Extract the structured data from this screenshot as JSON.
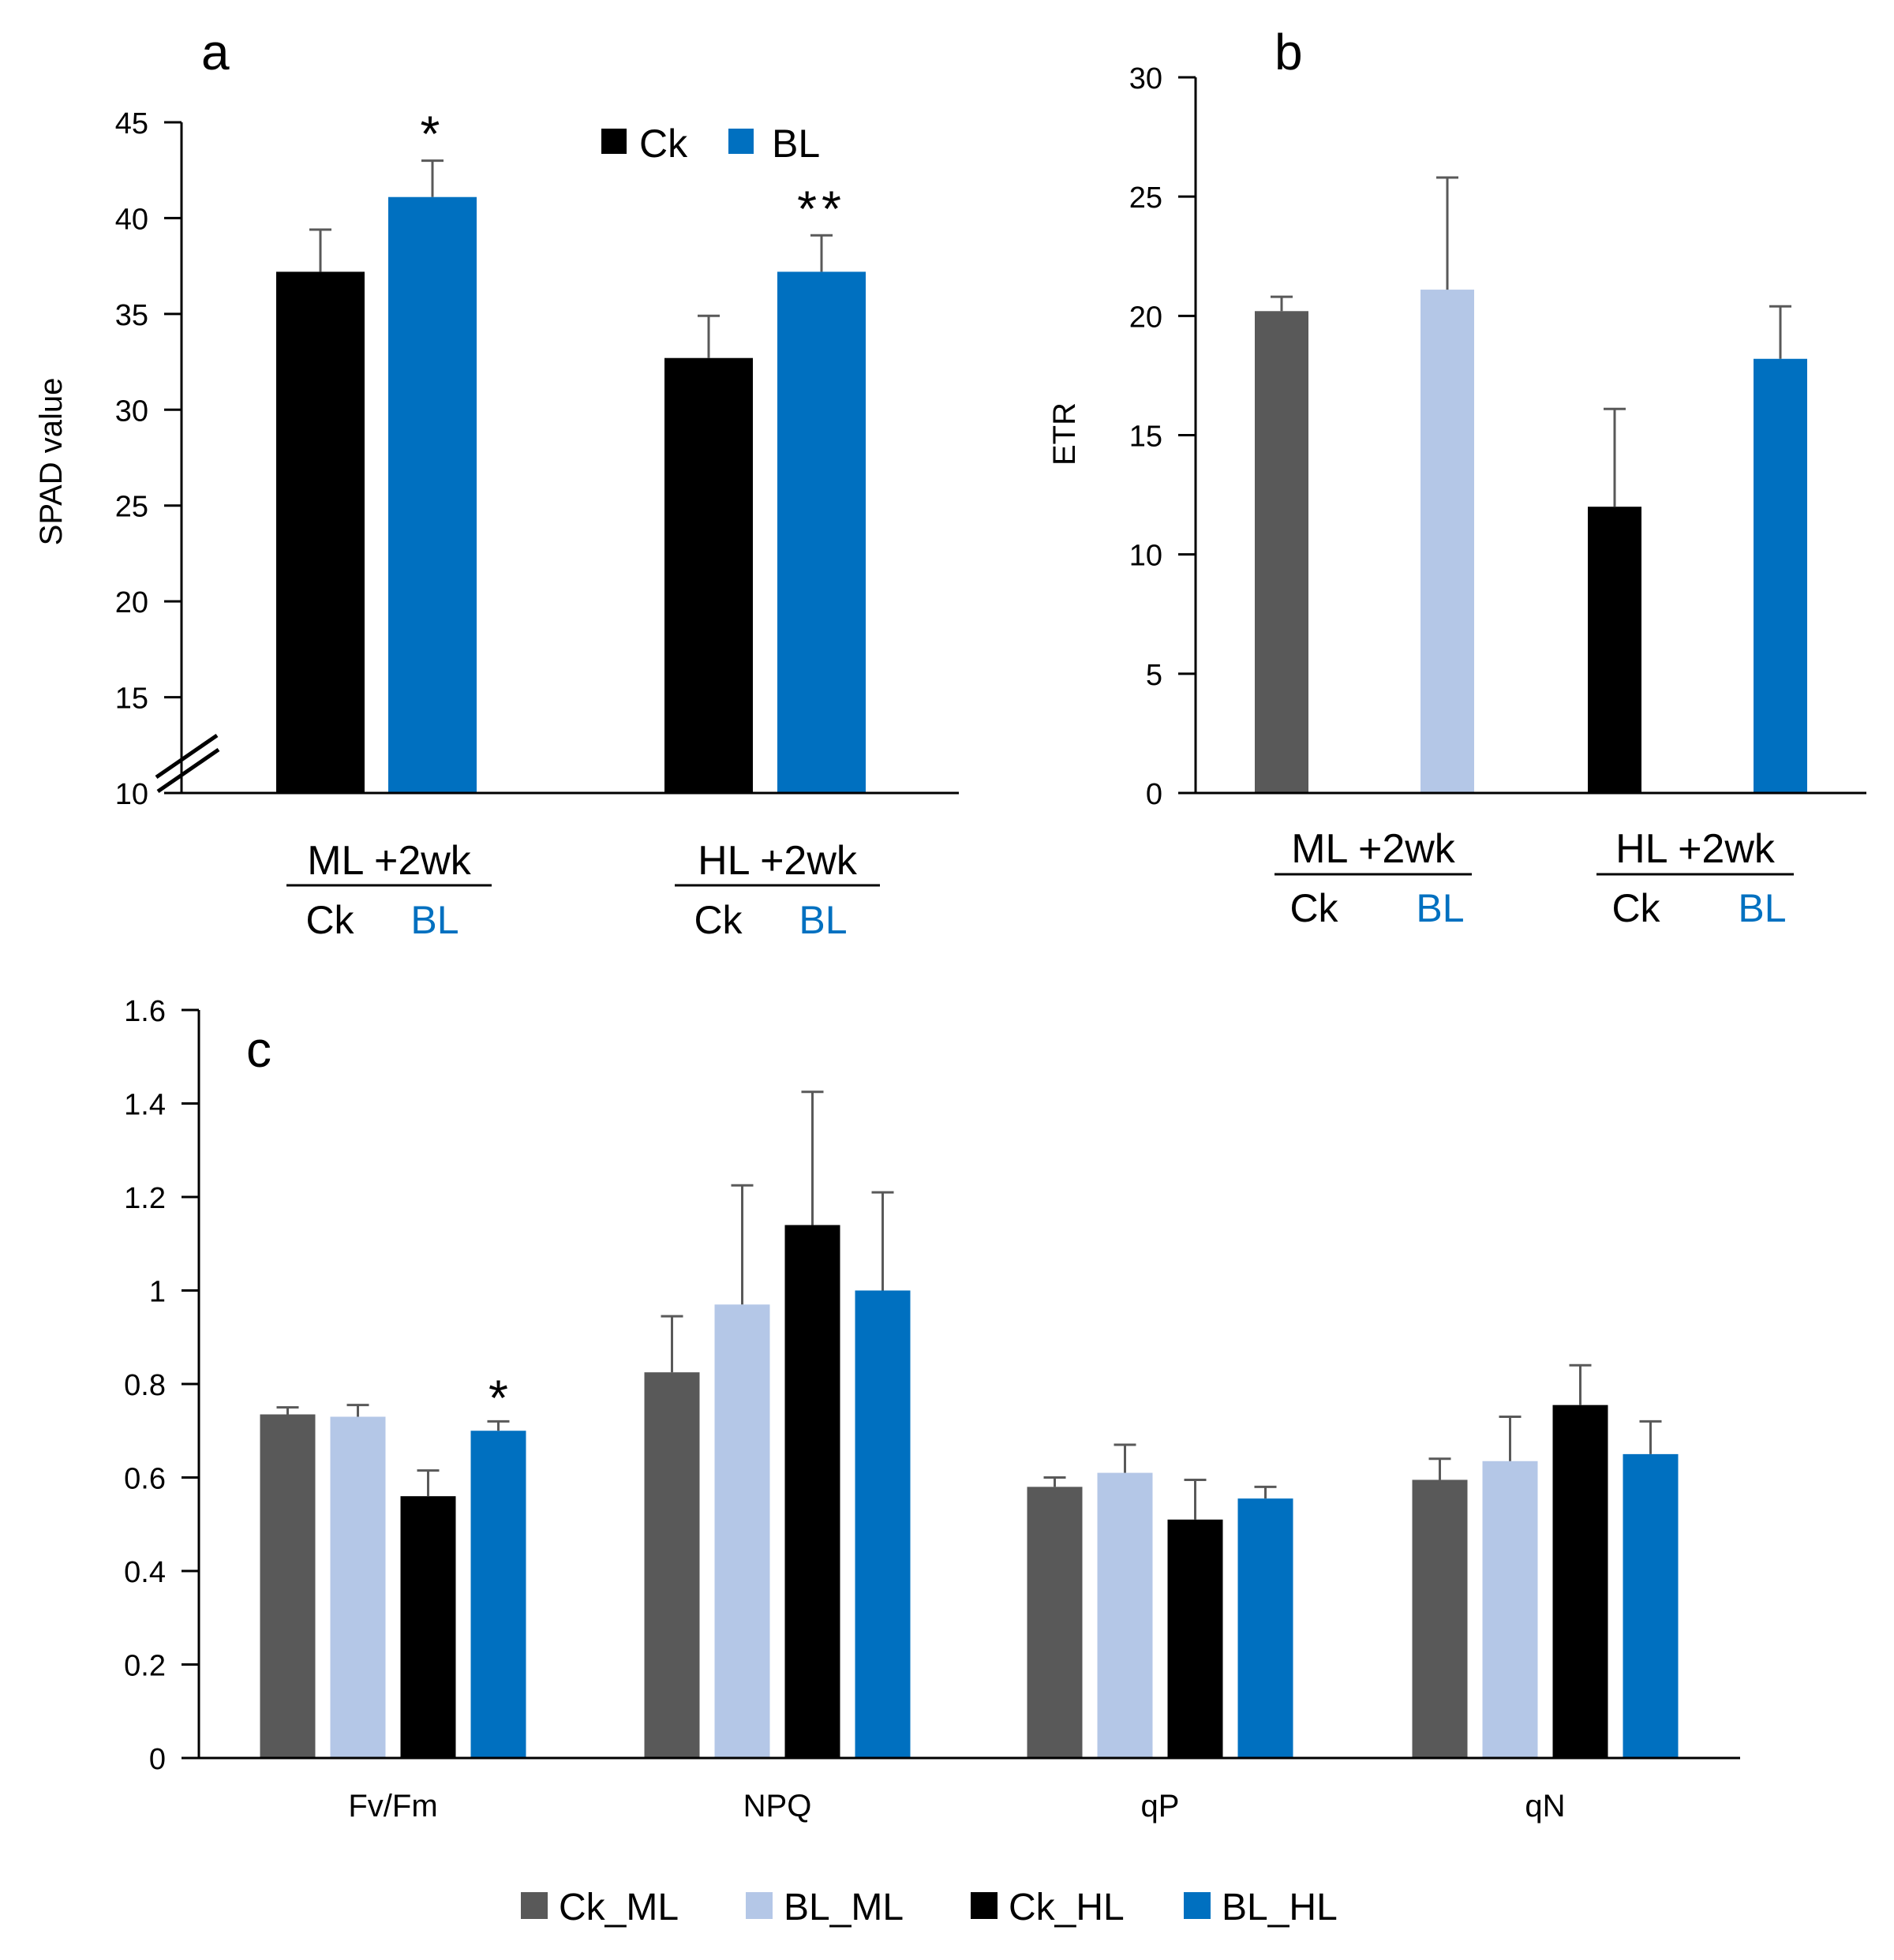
{
  "colors": {
    "ck": "#000000",
    "bl": "#0070c0",
    "ck_ml": "#595959",
    "bl_ml": "#b4c7e7",
    "ck_hl": "#000000",
    "bl_hl": "#0070c0",
    "axis": "#000000",
    "error_bar": "#595959"
  },
  "chart_data": [
    {
      "panel": "a",
      "type": "bar",
      "ylabel": "SPAD value",
      "ylim": [
        10,
        45
      ],
      "axis_break": true,
      "yticks": [
        "10",
        "15",
        "20",
        "25",
        "30",
        "35",
        "40",
        "45"
      ],
      "legend": [
        "Ck",
        "BL"
      ],
      "groups": [
        {
          "label": "ML +2wk",
          "sublabels": [
            "Ck",
            "BL"
          ],
          "bars": [
            {
              "series": "Ck",
              "value": 37.2,
              "error": 2.2,
              "sig": ""
            },
            {
              "series": "BL",
              "value": 41.1,
              "error": 1.9,
              "sig": "*"
            }
          ]
        },
        {
          "label": "HL +2wk",
          "sublabels": [
            "Ck",
            "BL"
          ],
          "bars": [
            {
              "series": "Ck",
              "value": 32.7,
              "error": 2.2,
              "sig": ""
            },
            {
              "series": "BL",
              "value": 37.2,
              "error": 1.9,
              "sig": "**"
            }
          ]
        }
      ]
    },
    {
      "panel": "b",
      "type": "bar",
      "ylabel": "ETR",
      "ylim": [
        0,
        30
      ],
      "yticks": [
        "0",
        "5",
        "10",
        "15",
        "20",
        "25",
        "30"
      ],
      "groups": [
        {
          "label": "ML +2wk",
          "sublabels": [
            "Ck",
            "BL"
          ],
          "bars": [
            {
              "series": "Ck_ML",
              "value": 20.2,
              "error": 0.6
            },
            {
              "series": "BL_ML",
              "value": 21.1,
              "error": 4.7
            }
          ]
        },
        {
          "label": "HL +2wk",
          "sublabels": [
            "Ck",
            "BL"
          ],
          "bars": [
            {
              "series": "Ck_HL",
              "value": 12.0,
              "error": 4.1
            },
            {
              "series": "BL_HL",
              "value": 18.2,
              "error": 2.2
            }
          ]
        }
      ]
    },
    {
      "panel": "c",
      "type": "bar",
      "ylim": [
        0,
        1.6
      ],
      "yticks": [
        "0",
        "0.2",
        "0.4",
        "0.6",
        "0.8",
        "1",
        "1.2",
        "1.4",
        "1.6"
      ],
      "categories": [
        "Fv/Fm",
        "NPQ",
        "qP",
        "qN"
      ],
      "series": [
        {
          "name": "Ck_ML",
          "values": [
            0.735,
            0.825,
            0.58,
            0.595
          ],
          "errors": [
            0.015,
            0.12,
            0.02,
            0.045
          ]
        },
        {
          "name": "BL_ML",
          "values": [
            0.73,
            0.97,
            0.61,
            0.635
          ],
          "errors": [
            0.025,
            0.255,
            0.06,
            0.095
          ]
        },
        {
          "name": "Ck_HL",
          "values": [
            0.56,
            1.14,
            0.51,
            0.755
          ],
          "errors": [
            0.055,
            0.285,
            0.085,
            0.085
          ]
        },
        {
          "name": "BL_HL",
          "values": [
            0.7,
            1.0,
            0.555,
            0.65
          ],
          "errors": [
            0.02,
            0.21,
            0.025,
            0.07
          ]
        }
      ],
      "annotations": [
        {
          "category": "Fv/Fm",
          "series": "BL_HL",
          "text": "*"
        }
      ],
      "legend": [
        "Ck_ML",
        "BL_ML",
        "Ck_HL",
        "BL_HL"
      ]
    }
  ]
}
